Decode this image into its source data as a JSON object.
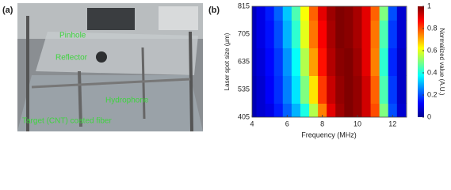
{
  "panels": {
    "a": "(a)",
    "b": "(b)"
  },
  "photo": {
    "labels": [
      "Pinhole",
      "Reflector",
      "Hydrophone",
      "Target (CNT) coated fiber"
    ]
  },
  "chart_data": {
    "type": "heatmap",
    "xlabel": "Frequency (MHz)",
    "ylabel": "Laser spot size (μm)",
    "x": [
      4,
      4.5,
      5,
      5.5,
      6,
      6.5,
      7,
      7.5,
      8,
      8.5,
      9,
      9.5,
      10,
      10.5,
      11,
      11.5,
      12,
      12.5
    ],
    "rows": [
      "405",
      "535",
      "635",
      "705",
      "815"
    ],
    "values": [
      [
        0.05,
        0.08,
        0.1,
        0.15,
        0.22,
        0.3,
        0.4,
        0.55,
        0.75,
        0.9,
        0.97,
        1,
        0.98,
        0.92,
        0.8,
        0.5,
        0.2,
        0.08
      ],
      [
        0.05,
        0.08,
        0.12,
        0.17,
        0.25,
        0.35,
        0.5,
        0.65,
        0.82,
        0.93,
        0.98,
        1,
        0.98,
        0.92,
        0.78,
        0.45,
        0.18,
        0.07
      ],
      [
        0.06,
        0.09,
        0.13,
        0.18,
        0.27,
        0.38,
        0.55,
        0.72,
        0.86,
        0.95,
        0.99,
        1,
        0.97,
        0.9,
        0.75,
        0.42,
        0.16,
        0.07
      ],
      [
        0.06,
        0.1,
        0.14,
        0.2,
        0.3,
        0.42,
        0.6,
        0.76,
        0.88,
        0.96,
        1,
        0.99,
        0.96,
        0.9,
        0.76,
        0.45,
        0.18,
        0.08
      ],
      [
        0.06,
        0.1,
        0.15,
        0.22,
        0.32,
        0.45,
        0.62,
        0.78,
        0.9,
        0.97,
        1,
        0.99,
        0.96,
        0.9,
        0.78,
        0.5,
        0.2,
        0.08
      ]
    ],
    "xlim": [
      4,
      12.8
    ],
    "xticks": [
      4,
      6,
      8,
      10,
      12
    ],
    "colorbar": {
      "label": "Normalized value (A.U.)",
      "lim": [
        0,
        1
      ],
      "ticks": [
        0,
        0.2,
        0.4,
        0.6,
        0.8,
        1
      ],
      "colormap": "jet"
    }
  }
}
